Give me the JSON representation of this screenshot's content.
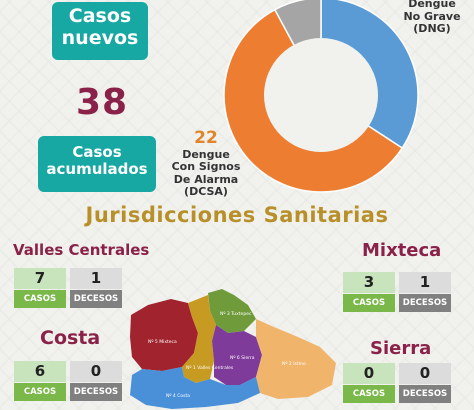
{
  "badges": {
    "new_line1": "Casos",
    "new_line2": "nuevos",
    "acc_line1": "Casos",
    "acc_line2": "acumulados"
  },
  "total_cases": "38",
  "donut": {
    "dng_label_line1": "Dengue",
    "dng_label_line2": "No Grave",
    "dng_label_line3": "(DNG)",
    "dcsa_number": "22",
    "dcsa_label_line1": "Dengue",
    "dcsa_label_line2": "Con Signos",
    "dcsa_label_line3": "De Alarma",
    "dcsa_label_line4": "(DCSA)"
  },
  "chart_data": {
    "type": "pie",
    "series": [
      {
        "name": "Dengue No Grave (DNG)",
        "value": 13,
        "color": "#5b9bd5"
      },
      {
        "name": "Dengue Con Signos De Alarma (DCSA)",
        "value": 22,
        "color": "#ed7d31"
      },
      {
        "name": "",
        "value": 3,
        "color": "#a5a5a5"
      }
    ]
  },
  "section_title": "Jurisdicciones Sanitarias",
  "regions": {
    "vc": {
      "name": "Valles Centrales",
      "casos": "7",
      "decesos": "1"
    },
    "mixteca": {
      "name": "Mixteca",
      "casos": "3",
      "decesos": "1"
    },
    "costa": {
      "name": "Costa",
      "casos": "6",
      "decesos": "0"
    },
    "sierra": {
      "name": "Sierra",
      "casos": "0",
      "decesos": "0"
    }
  },
  "labels": {
    "casos": "CASOS",
    "decesos": "DECESOS"
  },
  "map_labels": {
    "mixteca": "Nº 5 Mixteca",
    "tuxtepec": "Nº 3 Tuxtepec",
    "valles": "Nº 1 Valles Centrales",
    "sierra": "Nº 6 Sierra",
    "istmo": "Nº 2 Istmo",
    "costa": "Nº 4 Costa"
  },
  "colors": {
    "teal": "#17a8a3",
    "maroon": "#8a2148",
    "gold": "#b8902a",
    "green": "#7ab84a",
    "gray": "#808080"
  }
}
